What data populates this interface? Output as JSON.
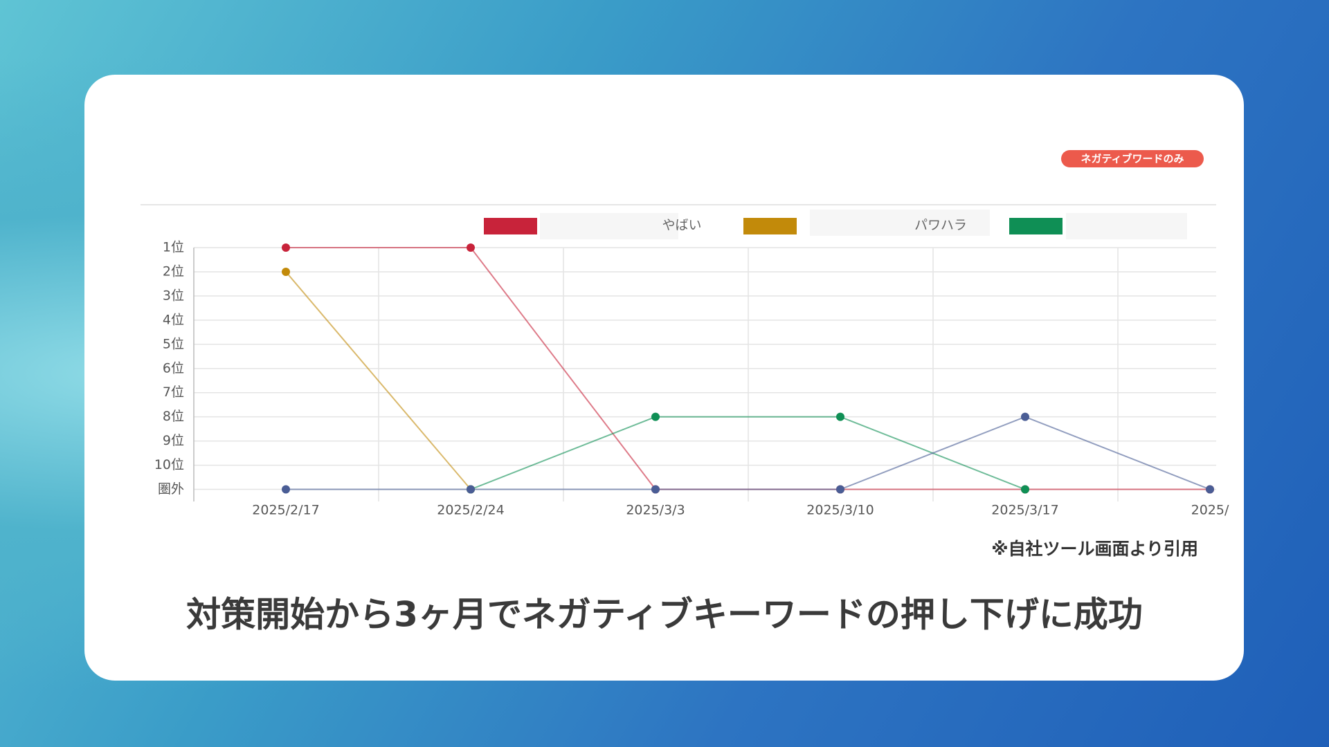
{
  "chart_data": {
    "type": "line",
    "annotations": {
      "badge": "ネガティブワードのみ",
      "note": "※自社ツール画面より引用",
      "caption": "対策開始から3ヶ月でネガティブキーワードの押し下げに成功"
    },
    "categories": [
      "2025/2/17",
      "2025/2/24",
      "2025/3/3",
      "2025/3/10",
      "2025/3/17",
      "2025/"
    ],
    "series": [
      {
        "name": "やばい",
        "color": "#c8233a",
        "values": [
          1,
          1,
          11,
          11,
          11,
          11
        ]
      },
      {
        "name": "パワハラ",
        "color": "#c28a0a",
        "values": [
          2,
          11,
          null,
          null,
          null,
          null
        ]
      },
      {
        "color": "#0f8f55",
        "values": [
          null,
          11,
          8,
          8,
          11,
          null
        ]
      },
      {
        "color": "#4a5d95",
        "values": [
          11,
          11,
          11,
          11,
          8,
          11
        ]
      }
    ],
    "ylim": [
      11.5,
      1
    ],
    "yticks": [
      {
        "value": 1,
        "label": "1位"
      },
      {
        "value": 2,
        "label": "2位"
      },
      {
        "value": 3,
        "label": "3位"
      },
      {
        "value": 4,
        "label": "4位"
      },
      {
        "value": 5,
        "label": "5位"
      },
      {
        "value": 6,
        "label": "6位"
      },
      {
        "value": 7,
        "label": "7位"
      },
      {
        "value": 8,
        "label": "8位"
      },
      {
        "value": 9,
        "label": "9位"
      },
      {
        "value": 10,
        "label": "10位"
      },
      {
        "value": 11,
        "label": "圏外"
      }
    ],
    "grid": true
  }
}
